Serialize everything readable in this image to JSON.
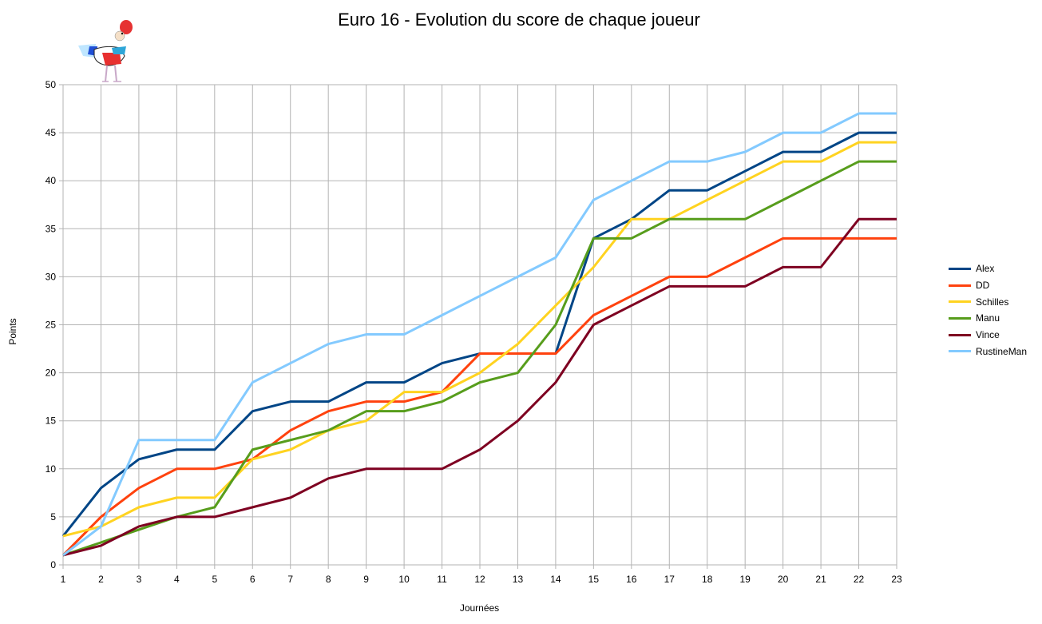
{
  "chart_data": {
    "type": "line",
    "title": "Euro 16 - Evolution du score de chaque joueur",
    "xlabel": "Journées",
    "ylabel": "Points",
    "x": [
      1,
      2,
      3,
      4,
      5,
      6,
      7,
      8,
      9,
      10,
      11,
      12,
      13,
      14,
      15,
      16,
      17,
      18,
      19,
      20,
      21,
      22,
      23
    ],
    "ylim": [
      0,
      50
    ],
    "yticks": [
      0,
      5,
      10,
      15,
      20,
      25,
      30,
      35,
      40,
      45,
      50
    ],
    "grid": true,
    "legend_position": "right",
    "series": [
      {
        "name": "Alex",
        "color": "#004586",
        "values": [
          3,
          8,
          11,
          12,
          12,
          16,
          17,
          17,
          19,
          19,
          21,
          22,
          22,
          22,
          34,
          36,
          39,
          39,
          41,
          43,
          43,
          45,
          45
        ]
      },
      {
        "name": "DD",
        "color": "#ff420e",
        "values": [
          1,
          5,
          8,
          10,
          10,
          11,
          14,
          16,
          17,
          17,
          18,
          22,
          22,
          22,
          26,
          28,
          30,
          30,
          32,
          34,
          34,
          34,
          34
        ]
      },
      {
        "name": "Schilles",
        "color": "#ffd320",
        "values": [
          3,
          4,
          6,
          7,
          7,
          11,
          12,
          14,
          15,
          18,
          18,
          20,
          23,
          27,
          31,
          36,
          36,
          38,
          40,
          42,
          42,
          44,
          44
        ]
      },
      {
        "name": "Manu",
        "color": "#579d1c",
        "values": [
          1,
          null,
          null,
          5,
          6,
          12,
          13,
          14,
          16,
          16,
          17,
          19,
          20,
          25,
          34,
          34,
          36,
          36,
          36,
          38,
          40,
          42,
          42
        ]
      },
      {
        "name": "Vince",
        "color": "#7e0021",
        "values": [
          1,
          2,
          4,
          5,
          5,
          6,
          7,
          9,
          10,
          10,
          10,
          12,
          15,
          19,
          25,
          27,
          29,
          29,
          29,
          31,
          31,
          36,
          36
        ]
      },
      {
        "name": "RustineMan",
        "color": "#83caff",
        "values": [
          1,
          4,
          13,
          13,
          13,
          19,
          21,
          23,
          24,
          24,
          26,
          28,
          30,
          32,
          38,
          40,
          42,
          42,
          43,
          45,
          45,
          47,
          47
        ]
      }
    ]
  }
}
